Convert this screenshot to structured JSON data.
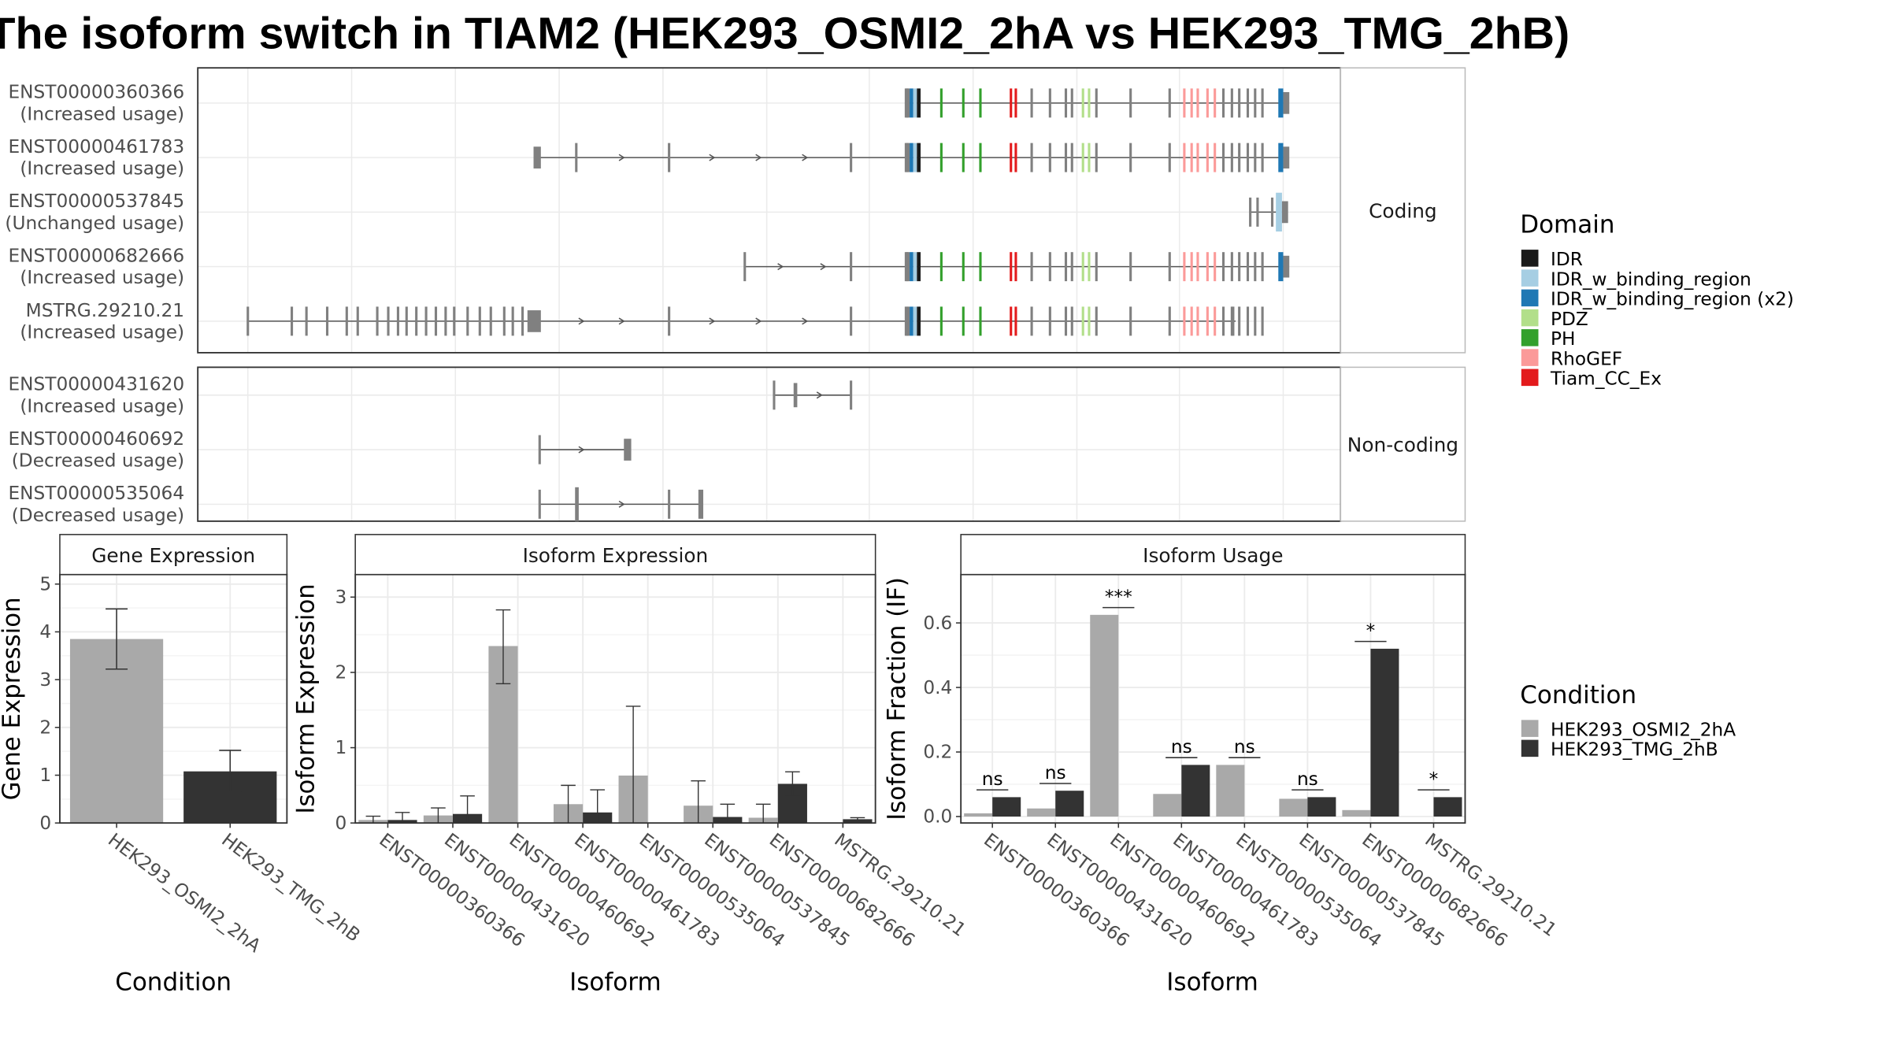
{
  "title": "The isoform switch in TIAM2 (HEK293_OSMI2_2hA vs HEK293_TMG_2hB)",
  "colors": {
    "cond1": "#a9a9a9",
    "cond2": "#333333",
    "domains": [
      "#1a1a1a",
      "#a6cee3",
      "#1f78b4",
      "#b2df8a",
      "#33a02c",
      "#fb9a99",
      "#e31a1c"
    ],
    "exon": "#808080"
  },
  "structure": {
    "groups": [
      {
        "label": "Coding",
        "transcripts": [
          {
            "id": "ENST00000360366",
            "usage": "(Increased usage)"
          },
          {
            "id": "ENST00000461783",
            "usage": "(Increased usage)"
          },
          {
            "id": "ENST00000537845",
            "usage": "(Unchanged usage)"
          },
          {
            "id": "ENST00000682666",
            "usage": "(Increased usage)"
          },
          {
            "id": "MSTRG.29210.21",
            "usage": "(Increased usage)"
          }
        ]
      },
      {
        "label": "Non-coding",
        "transcripts": [
          {
            "id": "ENST00000431620",
            "usage": "(Increased usage)"
          },
          {
            "id": "ENST00000460692",
            "usage": "(Decreased usage)"
          },
          {
            "id": "ENST00000535064",
            "usage": "(Decreased usage)"
          }
        ]
      }
    ]
  },
  "legend_domain": {
    "title": "Domain",
    "items": [
      "IDR",
      "IDR_w_binding_region",
      "IDR_w_binding_region (x2)",
      "PDZ",
      "PH",
      "RhoGEF",
      "Tiam_CC_Ex"
    ]
  },
  "legend_condition": {
    "title": "Condition",
    "items": [
      "HEK293_OSMI2_2hA",
      "HEK293_TMG_2hB"
    ]
  },
  "chart_data": [
    {
      "type": "bar",
      "title": "Gene Expression",
      "xlabel": "Condition",
      "ylabel": "Gene Expression",
      "ylim": [
        0,
        5.2
      ],
      "yticks": [
        0,
        1,
        2,
        3,
        4,
        5
      ],
      "categories": [
        "HEK293_OSMI2_2hA",
        "HEK293_TMG_2hB"
      ],
      "values": [
        3.85,
        1.08
      ],
      "error": [
        [
          3.22,
          4.48
        ],
        [
          0.65,
          1.52
        ]
      ]
    },
    {
      "type": "bar",
      "title": "Isoform Expression",
      "xlabel": "Isoform",
      "ylabel": "Isoform Expression",
      "ylim": [
        0,
        3.3
      ],
      "yticks": [
        0,
        1,
        2,
        3
      ],
      "categories": [
        "ENST00000360366",
        "ENST00000431620",
        "ENST00000460692",
        "ENST00000461783",
        "ENST00000535064",
        "ENST00000537845",
        "ENST00000682666",
        "MSTRG.29210.21"
      ],
      "series": [
        {
          "name": "HEK293_OSMI2_2hA",
          "values": [
            0.04,
            0.1,
            2.35,
            0.25,
            0.63,
            0.23,
            0.07,
            0.0
          ],
          "error": [
            [
              0.0,
              0.09
            ],
            [
              0.0,
              0.2
            ],
            [
              1.85,
              2.83
            ],
            [
              0.0,
              0.5
            ],
            [
              0.0,
              1.55
            ],
            [
              0.0,
              0.56
            ],
            [
              0.0,
              0.25
            ],
            [
              0.0,
              0.0
            ]
          ]
        },
        {
          "name": "HEK293_TMG_2hB",
          "values": [
            0.04,
            0.12,
            0.0,
            0.14,
            0.0,
            0.08,
            0.52,
            0.05
          ],
          "error": [
            [
              0.0,
              0.14
            ],
            [
              0.0,
              0.36
            ],
            [
              0.0,
              0.0
            ],
            [
              0.0,
              0.44
            ],
            [
              0.0,
              0.0
            ],
            [
              0.0,
              0.25
            ],
            [
              0.36,
              0.68
            ],
            [
              0.03,
              0.07
            ]
          ]
        }
      ]
    },
    {
      "type": "bar",
      "title": "Isoform Usage",
      "xlabel": "Isoform",
      "ylabel": "Isoform Fraction (IF)",
      "ylim": [
        -0.02,
        0.75
      ],
      "yticks": [
        0.0,
        0.2,
        0.4,
        0.6
      ],
      "categories": [
        "ENST00000360366",
        "ENST00000431620",
        "ENST00000460692",
        "ENST00000461783",
        "ENST00000535064",
        "ENST00000537845",
        "ENST00000682666",
        "MSTRG.29210.21"
      ],
      "series": [
        {
          "name": "HEK293_OSMI2_2hA",
          "values": [
            0.01,
            0.025,
            0.625,
            0.07,
            0.16,
            0.055,
            0.02,
            0.0
          ]
        },
        {
          "name": "HEK293_TMG_2hB",
          "values": [
            0.06,
            0.08,
            0.0,
            0.16,
            0.0,
            0.06,
            0.52,
            0.06
          ]
        }
      ],
      "significance": [
        "ns",
        "ns",
        "***",
        "ns",
        "ns",
        "ns",
        "*",
        "*"
      ]
    }
  ]
}
